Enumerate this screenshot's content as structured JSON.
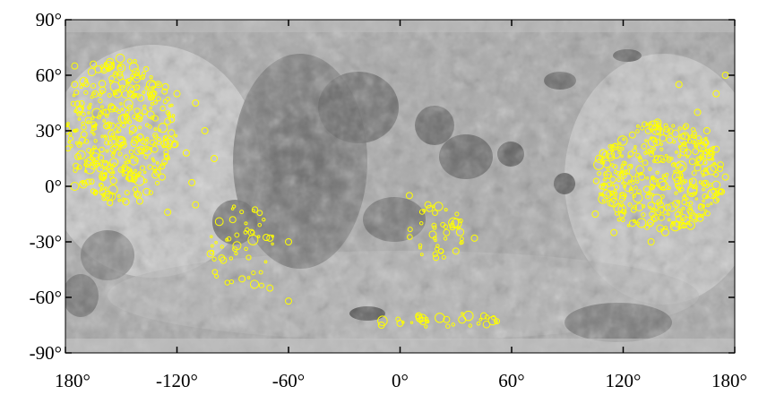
{
  "map": {
    "projection": "equirectangular",
    "lon_range": [
      -180,
      180
    ],
    "lat_range": [
      -90,
      90
    ],
    "ocean_color": "#5c5c5c",
    "highland_color": "#c8c8c8",
    "marker_color": "#ffff00"
  },
  "axes": {
    "y_ticks": [
      {
        "value": 90,
        "label": "90°"
      },
      {
        "value": 60,
        "label": "60°"
      },
      {
        "value": 30,
        "label": "30°"
      },
      {
        "value": 0,
        "label": "0°"
      },
      {
        "value": -30,
        "label": "-30°"
      },
      {
        "value": -60,
        "label": "-60°"
      },
      {
        "value": -90,
        "label": "-90°"
      }
    ],
    "x_ticks": [
      {
        "value": -180,
        "label": "180°"
      },
      {
        "value": -120,
        "label": "-120°"
      },
      {
        "value": -60,
        "label": "-60°"
      },
      {
        "value": 0,
        "label": "0°"
      },
      {
        "value": 60,
        "label": "60°"
      },
      {
        "value": 120,
        "label": "120°"
      },
      {
        "value": 180,
        "label": "180°"
      }
    ]
  },
  "chart_data": {
    "type": "scatter",
    "title": "",
    "xlabel": "",
    "ylabel": "",
    "xlim": [
      -180,
      180
    ],
    "ylim": [
      -90,
      90
    ],
    "grid": false,
    "series": [
      {
        "marker": "circle-outline",
        "color": "#ffff00",
        "points": [
          {
            "lon": -175,
            "lat": 65,
            "diam": 2
          },
          {
            "lon": -165,
            "lat": 66,
            "diam": 2
          },
          {
            "lon": -150,
            "lat": 64,
            "diam": 3
          },
          {
            "lon": -175,
            "lat": 55,
            "diam": 2
          },
          {
            "lon": -160,
            "lat": 52,
            "diam": 2
          },
          {
            "lon": -145,
            "lat": 50,
            "diam": 2
          },
          {
            "lon": -130,
            "lat": 55,
            "diam": 2
          },
          {
            "lon": -120,
            "lat": 50,
            "diam": 2
          },
          {
            "lon": -110,
            "lat": 45,
            "diam": 2
          },
          {
            "lon": -172,
            "lat": 42,
            "diam": 2
          },
          {
            "lon": -158,
            "lat": 40,
            "diam": 2
          },
          {
            "lon": -140,
            "lat": 38,
            "diam": 2
          },
          {
            "lon": -125,
            "lat": 35,
            "diam": 2
          },
          {
            "lon": -105,
            "lat": 30,
            "diam": 2
          },
          {
            "lon": -170,
            "lat": 28,
            "diam": 2
          },
          {
            "lon": -150,
            "lat": 25,
            "diam": 2
          },
          {
            "lon": -132,
            "lat": 20,
            "diam": 2
          },
          {
            "lon": -115,
            "lat": 18,
            "diam": 2
          },
          {
            "lon": -100,
            "lat": 15,
            "diam": 2
          },
          {
            "lon": -168,
            "lat": 12,
            "diam": 2
          },
          {
            "lon": -148,
            "lat": 10,
            "diam": 2
          },
          {
            "lon": -128,
            "lat": 5,
            "diam": 2
          },
          {
            "lon": -112,
            "lat": 2,
            "diam": 2
          },
          {
            "lon": -175,
            "lat": 0,
            "diam": 3
          },
          {
            "lon": -160,
            "lat": -3,
            "diam": 2
          },
          {
            "lon": -140,
            "lat": -8,
            "diam": 2
          },
          {
            "lon": -125,
            "lat": -14,
            "diam": 2
          },
          {
            "lon": -110,
            "lat": -10,
            "diam": 2
          },
          {
            "lon": -90,
            "lat": -18,
            "diam": 2
          },
          {
            "lon": -80,
            "lat": -25,
            "diam": 2
          },
          {
            "lon": -70,
            "lat": -28,
            "diam": 2
          },
          {
            "lon": -60,
            "lat": -30,
            "diam": 2
          },
          {
            "lon": -95,
            "lat": -40,
            "diam": 2
          },
          {
            "lon": -85,
            "lat": -50,
            "diam": 2
          },
          {
            "lon": -70,
            "lat": -55,
            "diam": 2
          },
          {
            "lon": -60,
            "lat": -62,
            "diam": 2
          },
          {
            "lon": 5,
            "lat": -5,
            "diam": 2
          },
          {
            "lon": 15,
            "lat": -10,
            "diam": 2
          },
          {
            "lon": 25,
            "lat": -25,
            "diam": 2
          },
          {
            "lon": 30,
            "lat": -35,
            "diam": 2
          },
          {
            "lon": 40,
            "lat": -28,
            "diam": 2
          },
          {
            "lon": 10,
            "lat": -70,
            "diam": 2
          },
          {
            "lon": 25,
            "lat": -72,
            "diam": 2
          },
          {
            "lon": 45,
            "lat": -70,
            "diam": 2
          },
          {
            "lon": 0,
            "lat": -74,
            "diam": 2
          },
          {
            "lon": -10,
            "lat": -75,
            "diam": 2
          },
          {
            "lon": 110,
            "lat": 0,
            "diam": 2
          },
          {
            "lon": 120,
            "lat": -5,
            "diam": 2
          },
          {
            "lon": 130,
            "lat": 5,
            "diam": 2
          },
          {
            "lon": 140,
            "lat": -10,
            "diam": 2
          },
          {
            "lon": 150,
            "lat": 0,
            "diam": 2
          },
          {
            "lon": 160,
            "lat": 10,
            "diam": 2
          },
          {
            "lon": 170,
            "lat": 20,
            "diam": 2
          },
          {
            "lon": 175,
            "lat": 5,
            "diam": 2
          },
          {
            "lon": 125,
            "lat": -20,
            "diam": 2
          },
          {
            "lon": 135,
            "lat": -30,
            "diam": 2
          },
          {
            "lon": 115,
            "lat": -25,
            "diam": 2
          },
          {
            "lon": 145,
            "lat": 25,
            "diam": 2
          },
          {
            "lon": 160,
            "lat": 40,
            "diam": 2
          },
          {
            "lon": 170,
            "lat": 50,
            "diam": 2
          },
          {
            "lon": 175,
            "lat": 60,
            "diam": 2
          },
          {
            "lon": 150,
            "lat": 55,
            "diam": 2
          },
          {
            "lon": 165,
            "lat": 30,
            "diam": 2
          },
          {
            "lon": 105,
            "lat": -15,
            "diam": 2
          }
        ]
      }
    ]
  }
}
